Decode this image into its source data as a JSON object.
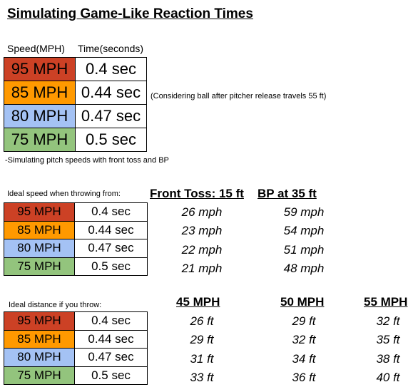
{
  "title": "Simulating Game-Like Reaction Times",
  "table1": {
    "header_speed": "Speed(MPH)",
    "header_time": "Time(seconds)",
    "rows": [
      {
        "speed": "95 MPH",
        "time": "0.4 sec",
        "color": "#cc4125"
      },
      {
        "speed": "85 MPH",
        "time": "0.44 sec",
        "color": "#ff9900"
      },
      {
        "speed": "80 MPH",
        "time": "0.47 sec",
        "color": "#a4c2f4"
      },
      {
        "speed": "75 MPH",
        "time": "0.5 sec",
        "color": "#93c47d"
      }
    ],
    "side_note": "(Considering ball after pitcher release travels 55 ft)",
    "footnote": "-Simulating pitch speeds with front toss and BP"
  },
  "section2": {
    "label": "Ideal speed when throwing from:",
    "col1_header": "Front Toss: 15 ft",
    "col2_header": "BP at 35 ft",
    "rows": [
      {
        "speed": "95 MPH",
        "time": "0.4 sec",
        "front_toss": "26 mph",
        "bp": "59 mph"
      },
      {
        "speed": "85 MPH",
        "time": "0.44 sec",
        "front_toss": "23 mph",
        "bp": "54 mph"
      },
      {
        "speed": "80 MPH",
        "time": "0.47 sec",
        "front_toss": "22 mph",
        "bp": "51 mph"
      },
      {
        "speed": "75 MPH",
        "time": "0.5 sec",
        "front_toss": "21 mph",
        "bp": "48 mph"
      }
    ]
  },
  "section3": {
    "label": "Ideal distance if you throw:",
    "col1_header": "45 MPH",
    "col2_header": "50 MPH",
    "col3_header": "55 MPH",
    "rows": [
      {
        "speed": "95 MPH",
        "time": "0.4 sec",
        "d45": "26 ft",
        "d50": "29 ft",
        "d55": "32 ft"
      },
      {
        "speed": "85 MPH",
        "time": "0.44 sec",
        "d45": "29 ft",
        "d50": "32 ft",
        "d55": "35 ft"
      },
      {
        "speed": "80 MPH",
        "time": "0.47 sec",
        "d45": "31 ft",
        "d50": "34 ft",
        "d55": "38 ft"
      },
      {
        "speed": "75 MPH",
        "time": "0.5 sec",
        "d45": "33 ft",
        "d50": "36 ft",
        "d55": "40 ft"
      }
    ]
  }
}
